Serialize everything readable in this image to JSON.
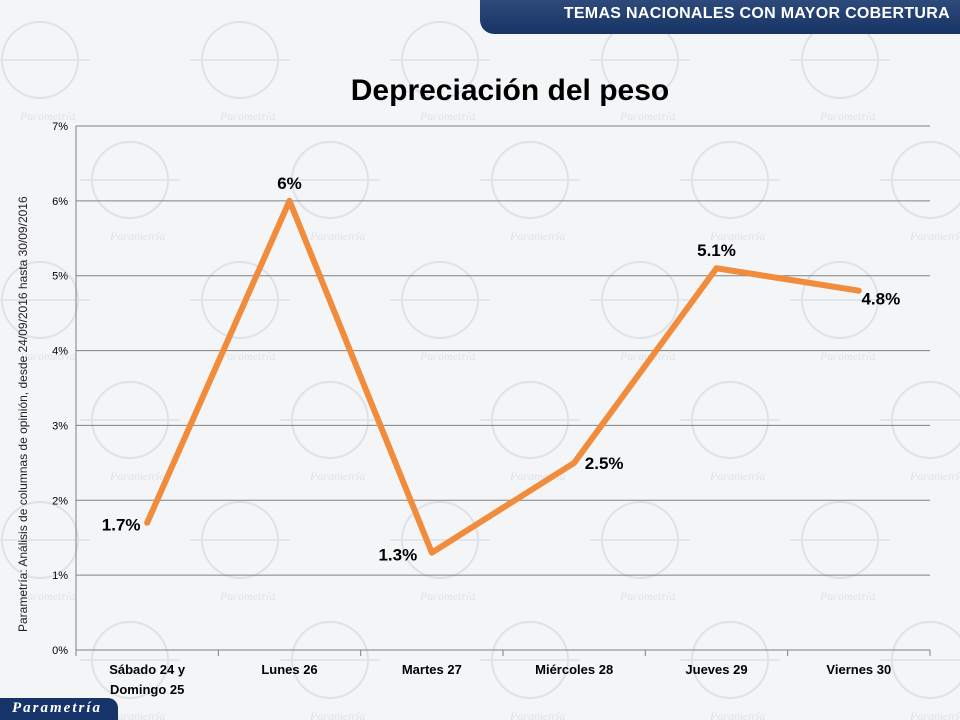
{
  "header": {
    "banner_text": "TEMAS NACIONALES CON MAYOR COBERTURA"
  },
  "side_note": "Parametría: Análisis de columnas de opinión, desde 24/09/2016 hasta  30/09/2016",
  "logo": {
    "text": "Parametría"
  },
  "colors": {
    "line": "#f08c3c",
    "banner": "#1b3a6e",
    "grid": "#808080"
  },
  "chart_data": {
    "type": "line",
    "title": "Depreciación del peso",
    "categories": [
      "Sábado 24 y Domingo 25",
      "Lunes 26",
      "Martes 27",
      "Miércoles 28",
      "Jueves 29",
      "Viernes 30"
    ],
    "category_lines": [
      [
        "Sábado 24 y",
        "Domingo 25"
      ],
      [
        "Lunes 26"
      ],
      [
        "Martes 27"
      ],
      [
        "Miércoles 28"
      ],
      [
        "Jueves 29"
      ],
      [
        "Viernes 30"
      ]
    ],
    "values": [
      1.7,
      6,
      1.3,
      2.5,
      5.1,
      4.8
    ],
    "data_labels": [
      "1.7%",
      "6%",
      "1.3%",
      "2.5%",
      "5.1%",
      "4.8%"
    ],
    "ylim": [
      0,
      7
    ],
    "yticks": [
      0,
      1,
      2,
      3,
      4,
      5,
      6,
      7
    ],
    "ytick_labels": [
      "0%",
      "1%",
      "2%",
      "3%",
      "4%",
      "5%",
      "6%",
      "7%"
    ],
    "grid": true,
    "legend": "none"
  }
}
